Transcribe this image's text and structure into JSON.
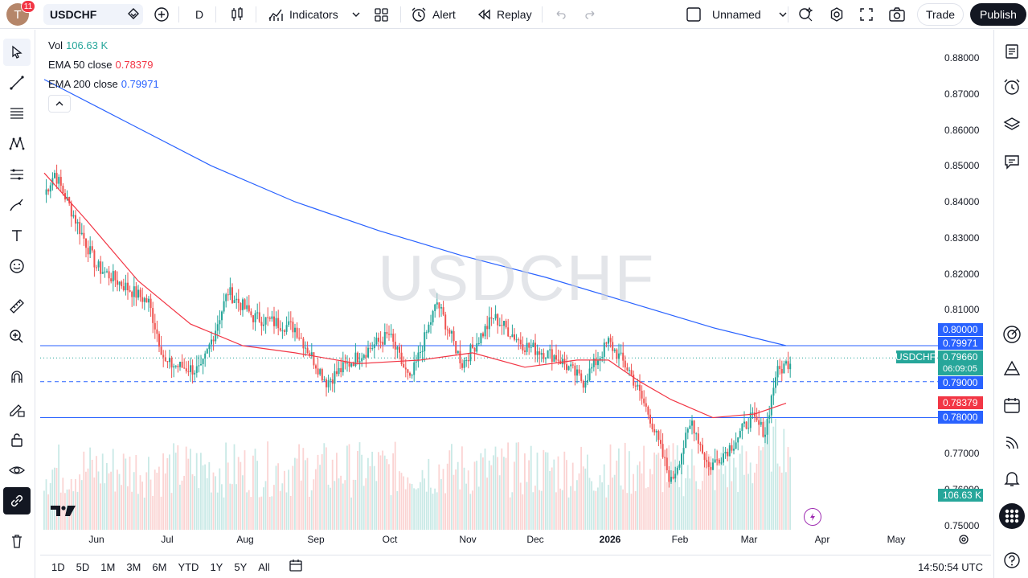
{
  "topbar": {
    "avatar_letter": "T",
    "notification_count": "11",
    "symbol": "USDCHF",
    "interval": "D",
    "indicators_label": "Indicators",
    "alert_label": "Alert",
    "replay_label": "Replay",
    "layout_name": "Unnamed",
    "trade_label": "Trade",
    "publish_label": "Publish"
  },
  "legend": {
    "vol_label": "Vol",
    "vol_value": "106.63 K",
    "ema50_label": "EMA 50 close",
    "ema50_value": "0.78379",
    "ema200_label": "EMA 200 close",
    "ema200_value": "0.79971"
  },
  "watermark": "USDCHF",
  "price_axis": {
    "ticks": [
      "0.88000",
      "0.87000",
      "0.86000",
      "0.85000",
      "0.84000",
      "0.83000",
      "0.82000",
      "0.81000",
      "0.80000",
      "0.79000",
      "0.78000",
      "0.77000",
      "0.76000",
      "0.75000"
    ],
    "tag_symbol": "USDCHF",
    "tag_price": "0.79660",
    "tag_countdown": "06:09:05",
    "tag_ema200": "0.79971",
    "tag_ema50": "0.78379",
    "tag_vol": "106.63 K",
    "tag_line_080": "0.80000",
    "tag_line_079": "0.79000",
    "tag_line_078": "0.78000"
  },
  "time_axis": {
    "labels": [
      "Jun",
      "Jul",
      "Aug",
      "Sep",
      "Oct",
      "Nov",
      "Dec",
      "2026",
      "Feb",
      "Mar",
      "Apr",
      "May"
    ]
  },
  "bottombar": {
    "ranges": [
      "1D",
      "5D",
      "1M",
      "3M",
      "6M",
      "YTD",
      "1Y",
      "5Y",
      "All"
    ],
    "clock": "14:50:54 UTC"
  },
  "colors": {
    "up": "#26a69a",
    "down": "#ef5350",
    "ema50": "#f23645",
    "ema200": "#2962ff",
    "hline": "#2962ff"
  },
  "chart_data": {
    "type": "candlestick",
    "symbol": "USDCHF",
    "ylim": [
      0.75,
      0.885
    ],
    "horizontal_lines": [
      0.8,
      0.79,
      0.78
    ],
    "ema50_close": [
      [
        0,
        0.848
      ],
      [
        20,
        0.835
      ],
      [
        45,
        0.818
      ],
      [
        70,
        0.806
      ],
      [
        95,
        0.8
      ],
      [
        120,
        0.798
      ],
      [
        150,
        0.795
      ],
      [
        180,
        0.796
      ],
      [
        205,
        0.798
      ],
      [
        230,
        0.794
      ],
      [
        255,
        0.796
      ],
      [
        270,
        0.796
      ],
      [
        285,
        0.79
      ],
      [
        300,
        0.785
      ],
      [
        320,
        0.78
      ],
      [
        340,
        0.781
      ],
      [
        355,
        0.784
      ]
    ],
    "ema200_close": [
      [
        0,
        0.874
      ],
      [
        40,
        0.862
      ],
      [
        80,
        0.85
      ],
      [
        120,
        0.84
      ],
      [
        160,
        0.832
      ],
      [
        200,
        0.825
      ],
      [
        240,
        0.819
      ],
      [
        280,
        0.812
      ],
      [
        320,
        0.805
      ],
      [
        355,
        0.8
      ]
    ],
    "key_points": [
      [
        0,
        0.842
      ],
      [
        5,
        0.848
      ],
      [
        25,
        0.822
      ],
      [
        50,
        0.812
      ],
      [
        58,
        0.795
      ],
      [
        75,
        0.793
      ],
      [
        88,
        0.815
      ],
      [
        100,
        0.808
      ],
      [
        120,
        0.805
      ],
      [
        135,
        0.79
      ],
      [
        150,
        0.797
      ],
      [
        165,
        0.803
      ],
      [
        175,
        0.79
      ],
      [
        188,
        0.812
      ],
      [
        200,
        0.795
      ],
      [
        215,
        0.808
      ],
      [
        230,
        0.8
      ],
      [
        245,
        0.797
      ],
      [
        258,
        0.79
      ],
      [
        270,
        0.801
      ],
      [
        280,
        0.793
      ],
      [
        290,
        0.78
      ],
      [
        300,
        0.762
      ],
      [
        310,
        0.779
      ],
      [
        318,
        0.766
      ],
      [
        330,
        0.773
      ],
      [
        338,
        0.78
      ],
      [
        345,
        0.776
      ],
      [
        350,
        0.792
      ],
      [
        357,
        0.796
      ]
    ]
  }
}
